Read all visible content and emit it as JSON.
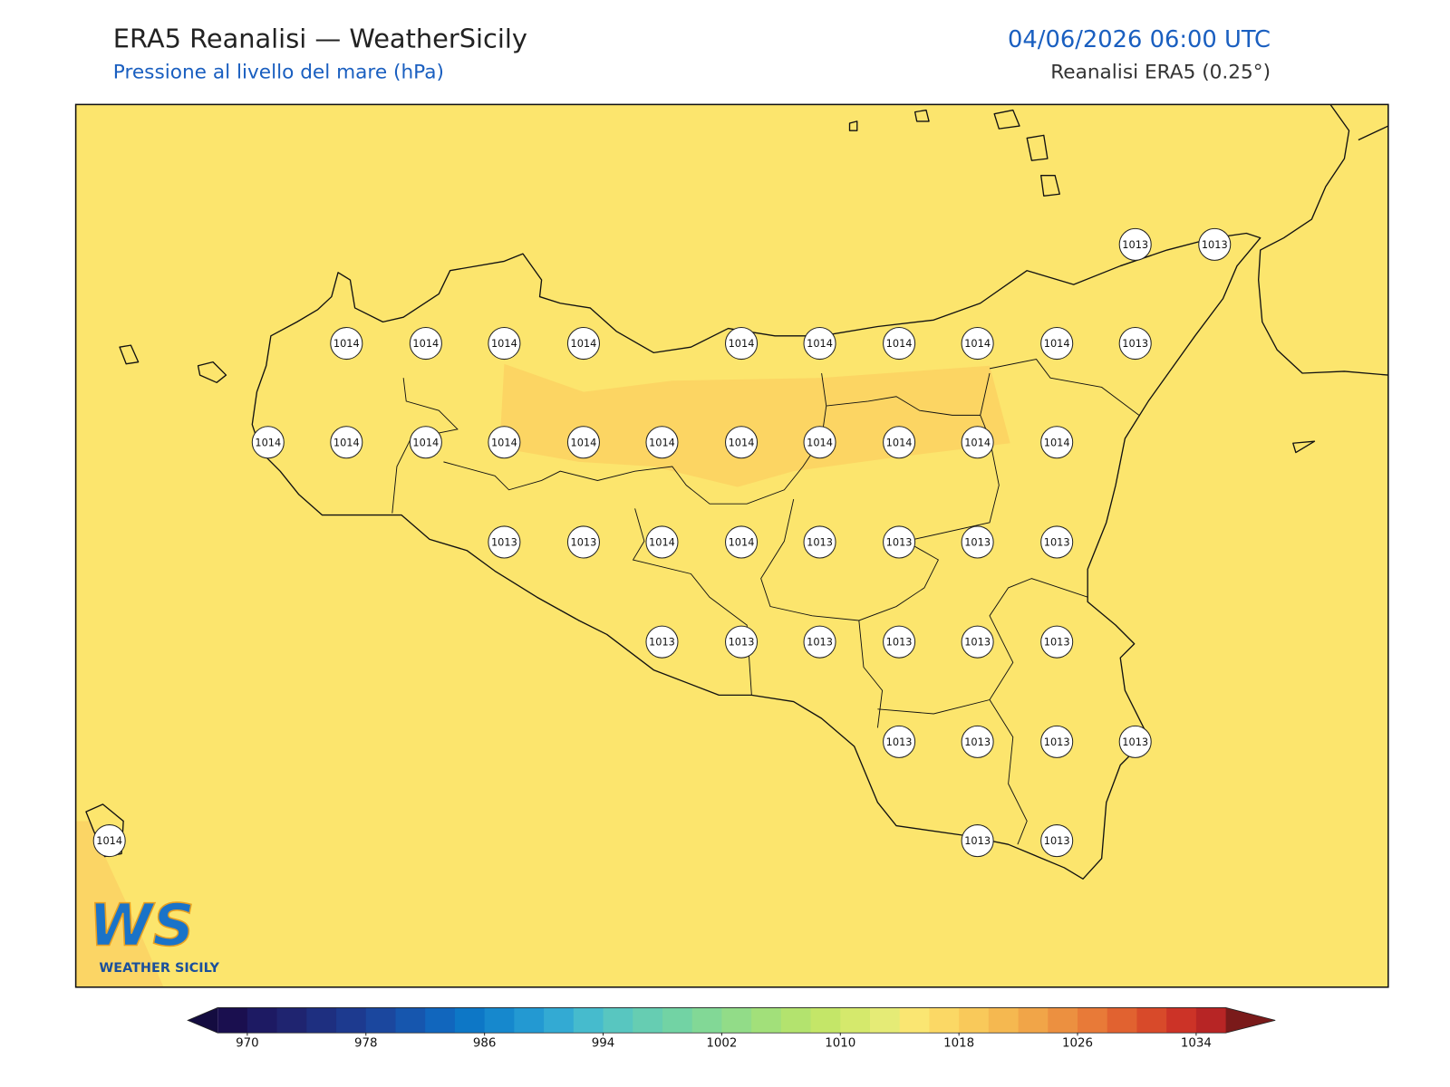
{
  "header": {
    "title": "ERA5 Reanalisi — WeatherSicily",
    "subtitle": "Pressione al livello del mare (hPa)",
    "datetime": "04/06/2026 06:00 UTC",
    "source": "Reanalisi ERA5 (0.25°)"
  },
  "map": {
    "background_color": "#fce56d",
    "pressure_labels": [
      1013,
      1013,
      1014,
      1014,
      1014,
      1014,
      1014,
      1014,
      1014,
      1014,
      1014,
      1013,
      1014,
      1014,
      1014,
      1014,
      1014,
      1014,
      1014,
      1014,
      1014,
      1014,
      1014,
      1013,
      1013,
      1014,
      1014,
      1013,
      1013,
      1013,
      1013,
      1013,
      1013,
      1013,
      1013,
      1013,
      1013,
      1013,
      1013,
      1013,
      1013,
      1014,
      1013,
      1013
    ]
  },
  "logo": {
    "letters": "WS",
    "text": "WEATHER SICILY"
  },
  "colorbar": {
    "clim": [
      968,
      1036
    ],
    "ticks": [
      970,
      978,
      986,
      994,
      1002,
      1010,
      1018,
      1026,
      1034
    ],
    "colors": [
      "#1a0f4f",
      "#1d1a63",
      "#1f2470",
      "#1e2f80",
      "#1d3a8f",
      "#1b479e",
      "#1656ae",
      "#1166bd",
      "#0d77c6",
      "#1688cd",
      "#2399d2",
      "#33aad3",
      "#46bbcd",
      "#58c6c0",
      "#66cdb2",
      "#72d3a4",
      "#82d896",
      "#92dc88",
      "#a2e07a",
      "#b3e36e",
      "#c4e668",
      "#d5e96c",
      "#e5eb76",
      "#fae672",
      "#fbd865",
      "#f9c95a",
      "#f5b850",
      "#f1a548",
      "#ec9040",
      "#e87a38",
      "#e16230",
      "#d84a2a",
      "#cc3327",
      "#b72525"
    ],
    "extend_low_color": "#140c40",
    "extend_high_color": "#7a1a1a"
  }
}
